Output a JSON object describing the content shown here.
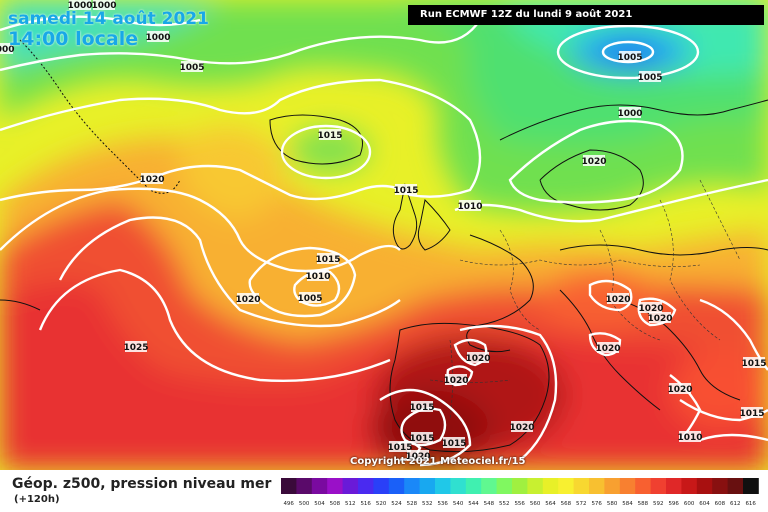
{
  "title": {
    "line1": "samedi 14 août 2021",
    "line2": "14:00 locale"
  },
  "run_info": "Run ECMWF 12Z du lundi 9 août 2021",
  "copyright": "Copyright 2021 Meteociel.fr/15",
  "legend": {
    "title": "Géop. z500, pression niveau mer",
    "subtitle": "(+120h)",
    "ticks": [
      "496",
      "500",
      "504",
      "508",
      "512",
      "516",
      "520",
      "524",
      "528",
      "532",
      "536",
      "540",
      "544",
      "548",
      "552",
      "556",
      "560",
      "564",
      "568",
      "572",
      "576",
      "580",
      "584",
      "588",
      "592",
      "596",
      "600",
      "604",
      "608",
      "612",
      "616"
    ],
    "colors": [
      "#3a0a3a",
      "#5a0a6a",
      "#7a0aa0",
      "#9a10c8",
      "#6a1ad8",
      "#4a2af0",
      "#2a40f8",
      "#1a60f8",
      "#1a88f8",
      "#18a8f0",
      "#20c8e8",
      "#30e0d0",
      "#40f0b0",
      "#60f890",
      "#80f860",
      "#a0f040",
      "#c8f030",
      "#e8f028",
      "#f8f030",
      "#f8d830",
      "#f8c030",
      "#f8a030",
      "#f88030",
      "#f86030",
      "#f04030",
      "#e02828",
      "#c81818",
      "#a81010",
      "#881010",
      "#681010",
      "#101010"
    ],
    "field_colors": {
      "yellow": "#f8e830",
      "orange": "#f8a030",
      "red": "#f04030",
      "dark_red": "#b01010",
      "green": "#80e040",
      "blue": "#2080f0"
    }
  },
  "isobars": [
    {
      "label": "1000"
    },
    {
      "label": "1000"
    },
    {
      "label": "1000"
    },
    {
      "label": "1005"
    },
    {
      "label": "1000"
    },
    {
      "label": "1005"
    },
    {
      "label": "1005"
    },
    {
      "label": "1000"
    },
    {
      "label": "1015"
    },
    {
      "label": "1020"
    },
    {
      "label": "1015"
    },
    {
      "label": "1010"
    },
    {
      "label": "1015"
    },
    {
      "label": "1010"
    },
    {
      "label": "1005"
    },
    {
      "label": "1020"
    },
    {
      "label": "1025"
    },
    {
      "label": "1020"
    },
    {
      "label": "1020"
    },
    {
      "label": "1020"
    },
    {
      "label": "1020"
    },
    {
      "label": "1020"
    },
    {
      "label": "1020"
    },
    {
      "label": "1015"
    },
    {
      "label": "1015"
    },
    {
      "label": "1015"
    },
    {
      "label": "1020"
    },
    {
      "label": "1015"
    },
    {
      "label": "1020"
    },
    {
      "label": "1020"
    },
    {
      "label": "1015"
    },
    {
      "label": "1015"
    },
    {
      "label": "1010"
    },
    {
      "label": "1020"
    }
  ]
}
